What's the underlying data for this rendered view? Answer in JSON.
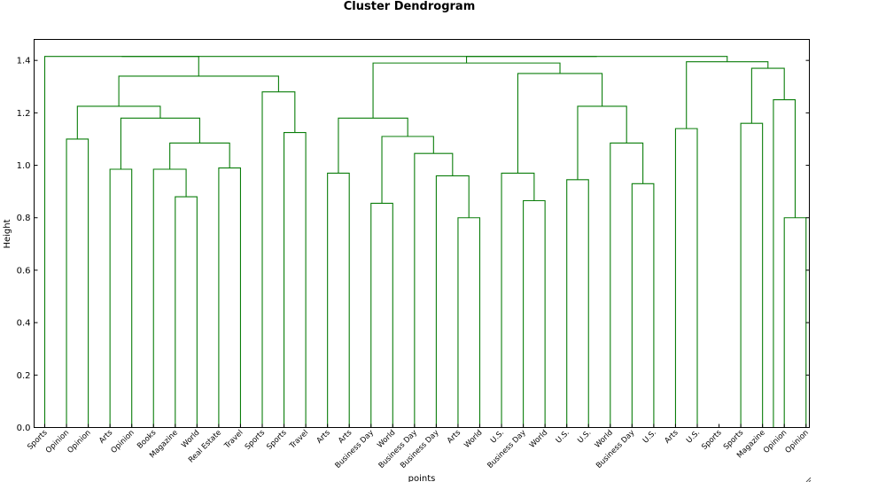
{
  "chart_data": {
    "type": "dendrogram",
    "title": "Cluster Dendrogram",
    "xlabel": "points",
    "ylabel": "Height",
    "ylim": [
      0,
      1.48
    ],
    "yticks": [
      "0.0",
      "0.2",
      "0.4",
      "0.6",
      "0.8",
      "1.0",
      "1.2",
      "1.4"
    ],
    "grid": false,
    "branch_color": "#0a7d0a",
    "leaves": [
      "Sports",
      "Opinion",
      "Opinion",
      "Arts",
      "Opinion",
      "Books",
      "Magazine",
      "World",
      "Real Estate",
      "Travel",
      "Sports",
      "Sports",
      "Travel",
      "Arts",
      "Arts",
      "Business Day",
      "World",
      "Business Day",
      "Business Day",
      "Arts",
      "World",
      "U.S.",
      "Business Day",
      "World",
      "U.S.",
      "U.S.",
      "World",
      "Business Day",
      "U.S.",
      "Arts",
      "U.S.",
      "Sports",
      "Sports",
      "Magazine",
      "Opinion",
      "Opinion"
    ],
    "merges": [
      {
        "a": 6,
        "b": 7,
        "height": 0.88
      },
      {
        "a": 19,
        "b": 20,
        "height": 0.8
      },
      {
        "a": 22,
        "b": 23,
        "height": 0.865
      },
      {
        "a": 27,
        "b": 28,
        "height": 0.93
      },
      {
        "a": 34,
        "b": 35,
        "height": 0.8
      },
      {
        "a": 15,
        "b": 16,
        "height": 0.855
      },
      {
        "a": 3,
        "b": 4,
        "height": 0.985
      },
      {
        "a": 5,
        "b": "m0",
        "height": 0.985
      },
      {
        "a": 8,
        "b": 9,
        "height": 0.99
      },
      {
        "a": 18,
        "b": "m1",
        "height": 0.96
      },
      {
        "a": 13,
        "b": 14,
        "height": 0.97
      },
      {
        "a": 21,
        "b": "m2",
        "height": 0.97
      },
      {
        "a": 24,
        "b": 25,
        "height": 0.945
      },
      {
        "a": 26,
        "b": "m3",
        "height": 1.085
      },
      {
        "a": 1,
        "b": 2,
        "height": 1.1
      },
      {
        "a": "m7",
        "b": "m8",
        "height": 1.085
      },
      {
        "a": 17,
        "b": "m9",
        "height": 1.045
      },
      {
        "a": 11,
        "b": 12,
        "height": 1.125
      },
      {
        "a": 29,
        "b": 30,
        "height": 1.14
      },
      {
        "a": 32,
        "b": 33,
        "height": 1.16
      },
      {
        "a": "m5",
        "b": "m16",
        "height": 1.11
      },
      {
        "a": "m6",
        "b": "m15",
        "height": 1.18
      },
      {
        "a": "m12",
        "b": "m13",
        "height": 1.225
      },
      {
        "a": 33.5,
        "b": "m4",
        "height": 1.25
      },
      {
        "a": "m10",
        "b": "m20",
        "height": 1.18
      },
      {
        "a": "m14",
        "b": "m21",
        "height": 1.225
      },
      {
        "a": 10,
        "b": "m17",
        "height": 1.28
      },
      {
        "a": "m11",
        "b": "m22",
        "height": 1.35
      },
      {
        "a": "m19",
        "b": "m23",
        "height": 1.37
      },
      {
        "a": "m25",
        "b": "m26",
        "height": 1.34
      },
      {
        "a": "m24",
        "b": "m27",
        "height": 1.39
      },
      {
        "a": "m18",
        "b": "m28",
        "height": 1.395
      },
      {
        "a": 0,
        "b": "m29",
        "height": 1.415
      },
      {
        "a": "m30",
        "b": "m31",
        "height": 1.415
      },
      {
        "a": "m32",
        "b": "m33",
        "height": 1.415
      }
    ]
  }
}
